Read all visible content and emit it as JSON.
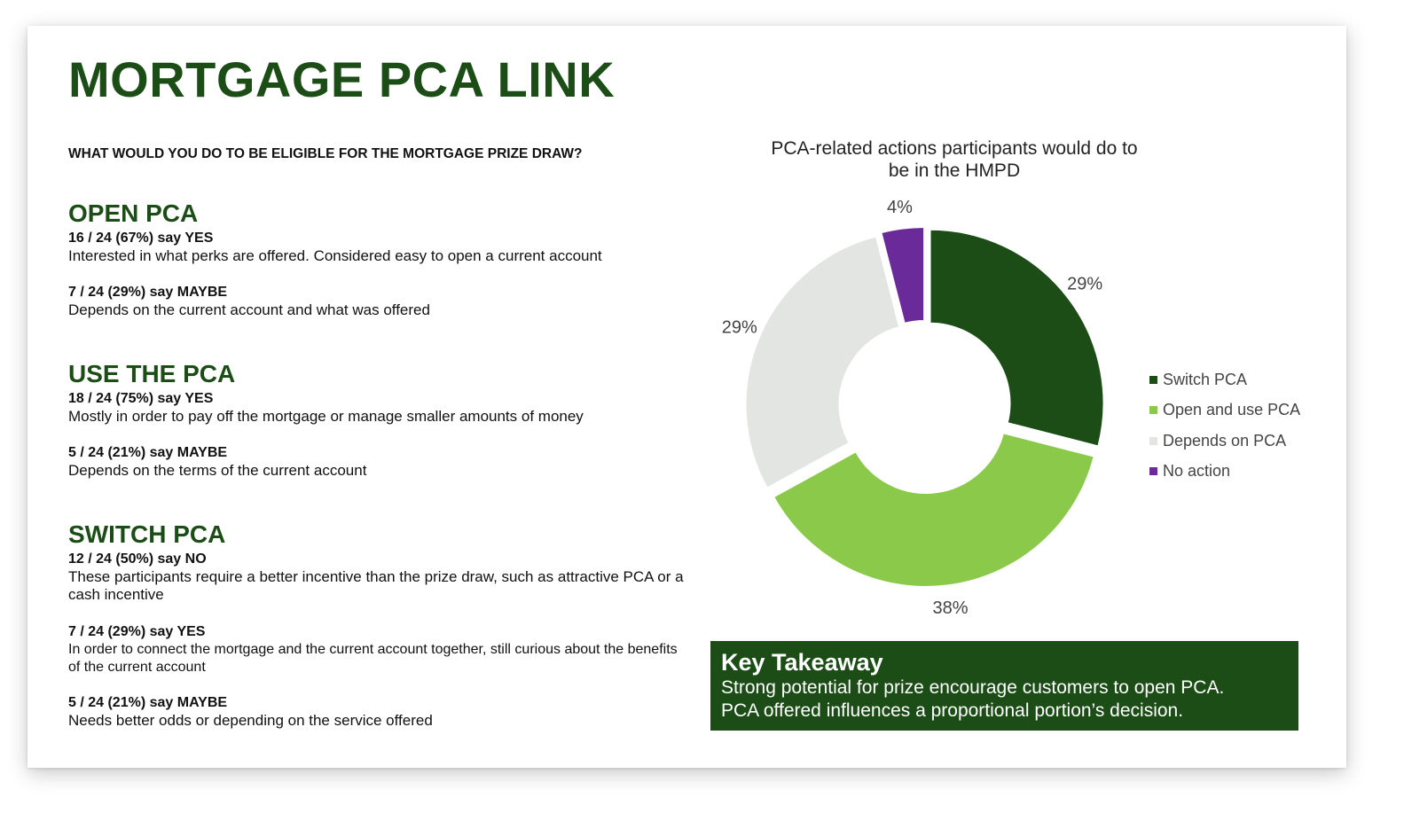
{
  "title": "MORTGAGE PCA LINK",
  "question": "WHAT WOULD YOU DO TO BE ELIGIBLE FOR THE MORTGAGE PRIZE DRAW?",
  "sections": [
    {
      "heading": "OPEN PCA",
      "items": [
        {
          "stat": "16 / 24 (67%) say YES",
          "text": "Interested in what perks are offered. Considered easy to open a current account"
        },
        {
          "stat": "7 / 24 (29%) say MAYBE",
          "text": "Depends on the current account and what was offered"
        }
      ]
    },
    {
      "heading": "USE THE PCA",
      "items": [
        {
          "stat": "18 / 24 (75%) say YES",
          "text": "Mostly in order to pay off the mortgage or manage smaller amounts of money"
        },
        {
          "stat": "5 / 24 (21%) say MAYBE",
          "text": "Depends on the terms of the current account"
        }
      ]
    },
    {
      "heading": "SWITCH PCA",
      "items": [
        {
          "stat": "12 / 24 (50%) say NO",
          "text": "These participants require a better incentive than the prize draw, such as attractive PCA or a cash incentive"
        },
        {
          "stat": "7 / 24 (29%) say YES",
          "text": "In order to connect the mortgage and the current account together, still curious about the benefits of the current account"
        },
        {
          "stat": "5 / 24 (21%) say MAYBE",
          "text": "Needs better odds or depending on the service offered"
        }
      ]
    }
  ],
  "chart_data": {
    "type": "pie",
    "variant": "donut",
    "title": "PCA-related actions participants would do to be in the HMPD",
    "labels": [
      "Switch PCA",
      "Open and use PCA",
      "Depends on PCA",
      "No action"
    ],
    "values": [
      29,
      38,
      29,
      4
    ],
    "data_labels": [
      "29%",
      "38%",
      "29%",
      "4%"
    ],
    "colors": [
      "#1c4d17",
      "#8bc94a",
      "#e3e5e3",
      "#6a2a9a"
    ],
    "legend_position": "right",
    "exploded": true
  },
  "takeaway": {
    "title": "Key Takeaway",
    "text_line1": "Strong potential for prize encourage customers to open PCA.",
    "text_line2": "PCA offered influences a proportional portion’s decision."
  }
}
